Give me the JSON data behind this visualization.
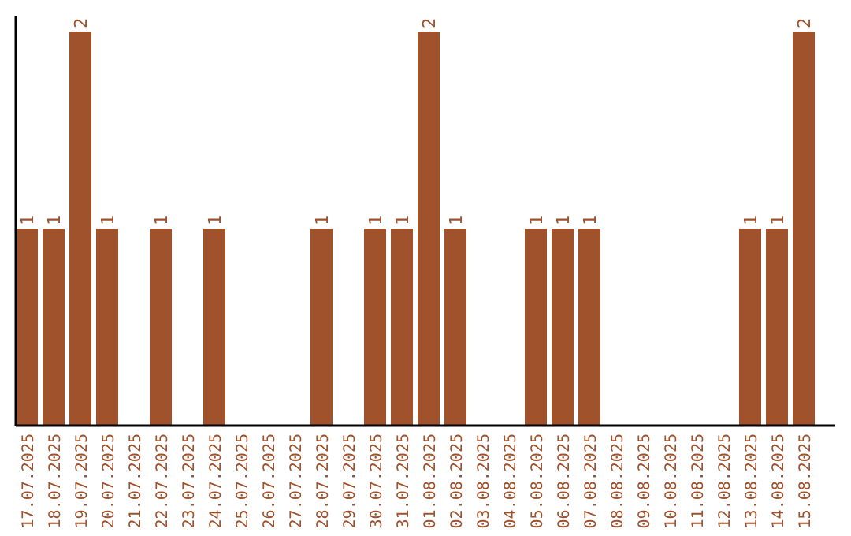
{
  "chart_data": {
    "type": "bar",
    "categories": [
      "17.07.2025",
      "18.07.2025",
      "19.07.2025",
      "20.07.2025",
      "21.07.2025",
      "22.07.2025",
      "23.07.2025",
      "24.07.2025",
      "25.07.2025",
      "26.07.2025",
      "27.07.2025",
      "28.07.2025",
      "29.07.2025",
      "30.07.2025",
      "31.07.2025",
      "01.08.2025",
      "02.08.2025",
      "03.08.2025",
      "04.08.2025",
      "05.08.2025",
      "06.08.2025",
      "07.08.2025",
      "08.08.2025",
      "09.08.2025",
      "10.08.2025",
      "11.08.2025",
      "12.08.2025",
      "13.08.2025",
      "14.08.2025",
      "15.08.2025"
    ],
    "values": [
      1,
      1,
      2,
      1,
      0,
      1,
      0,
      1,
      0,
      0,
      0,
      1,
      0,
      1,
      1,
      2,
      1,
      0,
      0,
      1,
      1,
      1,
      0,
      0,
      0,
      0,
      0,
      1,
      1,
      2
    ],
    "value_labels": [
      "1",
      "1",
      "2",
      "1",
      null,
      "1",
      null,
      "1",
      null,
      null,
      null,
      "1",
      null,
      "1",
      "1",
      "2",
      "1",
      null,
      null,
      "1",
      "1",
      "1",
      null,
      null,
      null,
      null,
      null,
      "1",
      "1",
      "2"
    ],
    "color": "#a0522d"
  }
}
